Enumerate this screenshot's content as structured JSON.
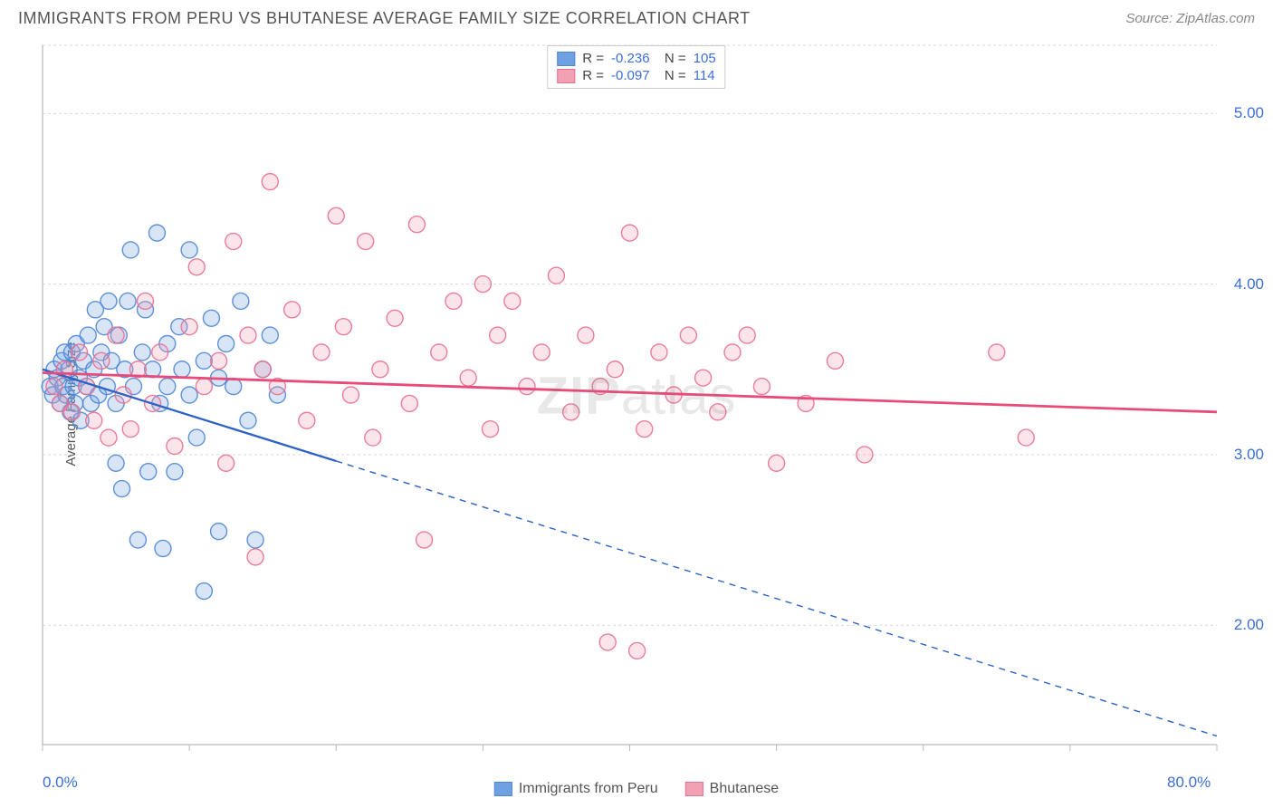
{
  "header": {
    "title": "IMMIGRANTS FROM PERU VS BHUTANESE AVERAGE FAMILY SIZE CORRELATION CHART",
    "source_label": "Source: ZipAtlas.com"
  },
  "watermark": {
    "bold": "ZIP",
    "rest": "atlas"
  },
  "chart": {
    "type": "scatter",
    "ylabel": "Average Family Size",
    "xlim": [
      0,
      80
    ],
    "ylim": [
      1.3,
      5.4
    ],
    "x_ticks": [
      0,
      80
    ],
    "x_tick_labels": [
      "0.0%",
      "80.0%"
    ],
    "y_ticks": [
      2.0,
      3.0,
      4.0,
      5.0
    ],
    "y_tick_labels": [
      "2.00",
      "3.00",
      "4.00",
      "5.00"
    ],
    "y_grid_extra": [
      5.4
    ],
    "background_color": "#ffffff",
    "grid_color": "#d9d9d9",
    "axis_color": "#bbbbbb",
    "marker_radius": 9,
    "fill_opacity": 0.28,
    "stroke_opacity": 0.9,
    "stroke_width": 1.4,
    "series": [
      {
        "name": "Immigrants from Peru",
        "color": "#6fa0e2",
        "stroke": "#4f86d6",
        "R": "-0.236",
        "N": "105",
        "regression": {
          "x1": 0,
          "y1": 3.5,
          "x2": 80,
          "y2": 1.35,
          "solid_until_x": 20
        },
        "regression_color": "#2c62c7",
        "regression_width": 2.3,
        "points": [
          [
            0.5,
            3.4
          ],
          [
            0.7,
            3.35
          ],
          [
            0.8,
            3.5
          ],
          [
            1.0,
            3.45
          ],
          [
            1.2,
            3.3
          ],
          [
            1.3,
            3.55
          ],
          [
            1.4,
            3.4
          ],
          [
            1.5,
            3.6
          ],
          [
            1.6,
            3.35
          ],
          [
            1.8,
            3.5
          ],
          [
            1.9,
            3.25
          ],
          [
            2.0,
            3.6
          ],
          [
            2.1,
            3.4
          ],
          [
            2.2,
            3.3
          ],
          [
            2.3,
            3.65
          ],
          [
            2.5,
            3.45
          ],
          [
            2.6,
            3.2
          ],
          [
            2.8,
            3.55
          ],
          [
            3.0,
            3.4
          ],
          [
            3.1,
            3.7
          ],
          [
            3.3,
            3.3
          ],
          [
            3.5,
            3.5
          ],
          [
            3.6,
            3.85
          ],
          [
            3.8,
            3.35
          ],
          [
            4.0,
            3.6
          ],
          [
            4.2,
            3.75
          ],
          [
            4.4,
            3.4
          ],
          [
            4.5,
            3.9
          ],
          [
            4.7,
            3.55
          ],
          [
            5.0,
            3.3
          ],
          [
            5.0,
            2.95
          ],
          [
            5.2,
            3.7
          ],
          [
            5.4,
            2.8
          ],
          [
            5.6,
            3.5
          ],
          [
            5.8,
            3.9
          ],
          [
            6.0,
            4.2
          ],
          [
            6.2,
            3.4
          ],
          [
            6.5,
            2.5
          ],
          [
            6.8,
            3.6
          ],
          [
            7.0,
            3.85
          ],
          [
            7.2,
            2.9
          ],
          [
            7.5,
            3.5
          ],
          [
            7.8,
            4.3
          ],
          [
            8.0,
            3.3
          ],
          [
            8.2,
            2.45
          ],
          [
            8.5,
            3.4
          ],
          [
            8.5,
            3.65
          ],
          [
            9.0,
            2.9
          ],
          [
            9.3,
            3.75
          ],
          [
            9.5,
            3.5
          ],
          [
            10.0,
            4.2
          ],
          [
            10.0,
            3.35
          ],
          [
            10.5,
            3.1
          ],
          [
            11.0,
            3.55
          ],
          [
            11.0,
            2.2
          ],
          [
            11.5,
            3.8
          ],
          [
            12.0,
            3.45
          ],
          [
            12.0,
            2.55
          ],
          [
            12.5,
            3.65
          ],
          [
            13.0,
            3.4
          ],
          [
            13.5,
            3.9
          ],
          [
            14.0,
            3.2
          ],
          [
            14.5,
            2.5
          ],
          [
            15.0,
            3.5
          ],
          [
            15.5,
            3.7
          ],
          [
            16.0,
            3.35
          ]
        ]
      },
      {
        "name": "Bhutanese",
        "color": "#f2a0b4",
        "stroke": "#e87091",
        "R": "-0.097",
        "N": "114",
        "regression": {
          "x1": 0,
          "y1": 3.48,
          "x2": 80,
          "y2": 3.25,
          "solid_until_x": 80
        },
        "regression_color": "#e84a7a",
        "regression_width": 2.8,
        "points": [
          [
            0.8,
            3.4
          ],
          [
            1.2,
            3.3
          ],
          [
            1.5,
            3.5
          ],
          [
            2.0,
            3.25
          ],
          [
            2.5,
            3.6
          ],
          [
            3.0,
            3.4
          ],
          [
            3.5,
            3.2
          ],
          [
            4.0,
            3.55
          ],
          [
            4.5,
            3.1
          ],
          [
            5.0,
            3.7
          ],
          [
            5.5,
            3.35
          ],
          [
            6.0,
            3.15
          ],
          [
            6.5,
            3.5
          ],
          [
            7.0,
            3.9
          ],
          [
            7.5,
            3.3
          ],
          [
            8.0,
            3.6
          ],
          [
            9.0,
            3.05
          ],
          [
            10.0,
            3.75
          ],
          [
            10.5,
            4.1
          ],
          [
            11.0,
            3.4
          ],
          [
            12.0,
            3.55
          ],
          [
            12.5,
            2.95
          ],
          [
            13.0,
            4.25
          ],
          [
            14.0,
            3.7
          ],
          [
            14.5,
            2.4
          ],
          [
            15.0,
            3.5
          ],
          [
            15.5,
            4.6
          ],
          [
            16.0,
            3.4
          ],
          [
            17.0,
            3.85
          ],
          [
            18.0,
            3.2
          ],
          [
            19.0,
            3.6
          ],
          [
            20.0,
            4.4
          ],
          [
            20.5,
            3.75
          ],
          [
            21.0,
            3.35
          ],
          [
            22.0,
            4.25
          ],
          [
            22.5,
            3.1
          ],
          [
            23.0,
            3.5
          ],
          [
            24.0,
            3.8
          ],
          [
            25.0,
            3.3
          ],
          [
            25.5,
            4.35
          ],
          [
            26.0,
            2.5
          ],
          [
            27.0,
            3.6
          ],
          [
            28.0,
            3.9
          ],
          [
            29.0,
            3.45
          ],
          [
            30.0,
            4.0
          ],
          [
            30.5,
            3.15
          ],
          [
            31.0,
            3.7
          ],
          [
            32.0,
            3.9
          ],
          [
            33.0,
            3.4
          ],
          [
            34.0,
            3.6
          ],
          [
            35.0,
            4.05
          ],
          [
            36.0,
            3.25
          ],
          [
            37.0,
            3.7
          ],
          [
            38.0,
            3.4
          ],
          [
            38.5,
            1.9
          ],
          [
            39.0,
            3.5
          ],
          [
            40.0,
            4.3
          ],
          [
            40.5,
            1.85
          ],
          [
            41.0,
            3.15
          ],
          [
            42.0,
            3.6
          ],
          [
            43.0,
            3.35
          ],
          [
            44.0,
            3.7
          ],
          [
            45.0,
            3.45
          ],
          [
            46.0,
            3.25
          ],
          [
            47.0,
            3.6
          ],
          [
            48.0,
            3.7
          ],
          [
            49.0,
            3.4
          ],
          [
            50.0,
            2.95
          ],
          [
            52.0,
            3.3
          ],
          [
            54.0,
            3.55
          ],
          [
            56.0,
            3.0
          ],
          [
            65.0,
            3.6
          ],
          [
            67.0,
            3.1
          ]
        ]
      }
    ],
    "bottom_legend": [
      "Immigrants from Peru",
      "Bhutanese"
    ]
  }
}
